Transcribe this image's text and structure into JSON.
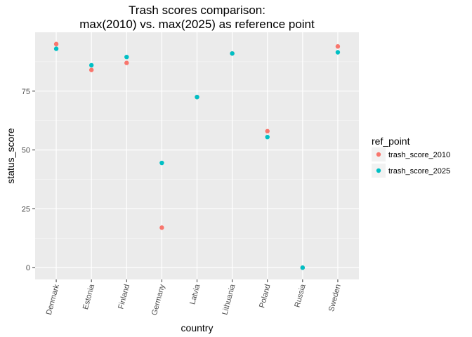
{
  "chart_data": {
    "type": "scatter",
    "title_lines": [
      "Trash scores comparison:",
      "max(2010) vs. max(2025) as reference point"
    ],
    "xlabel": "country",
    "ylabel": "status_score",
    "categories": [
      "Denmark",
      "Estonia",
      "Finland",
      "Germany",
      "Latvia",
      "Lithuania",
      "Poland",
      "Russia",
      "Sweden"
    ],
    "ylim": [
      -5,
      100
    ],
    "yticks": [
      0,
      25,
      50,
      75
    ],
    "grid": true,
    "legend": {
      "title": "ref_point",
      "position": "right"
    },
    "series": [
      {
        "name": "trash_score_2010",
        "color": "#F8766D",
        "values": [
          95,
          84,
          87,
          17,
          72.5,
          91,
          58,
          0,
          94
        ]
      },
      {
        "name": "trash_score_2025",
        "color": "#00BFC4",
        "values": [
          93,
          86,
          89.5,
          44.5,
          72.5,
          91,
          55.5,
          0,
          91.5
        ]
      }
    ]
  }
}
